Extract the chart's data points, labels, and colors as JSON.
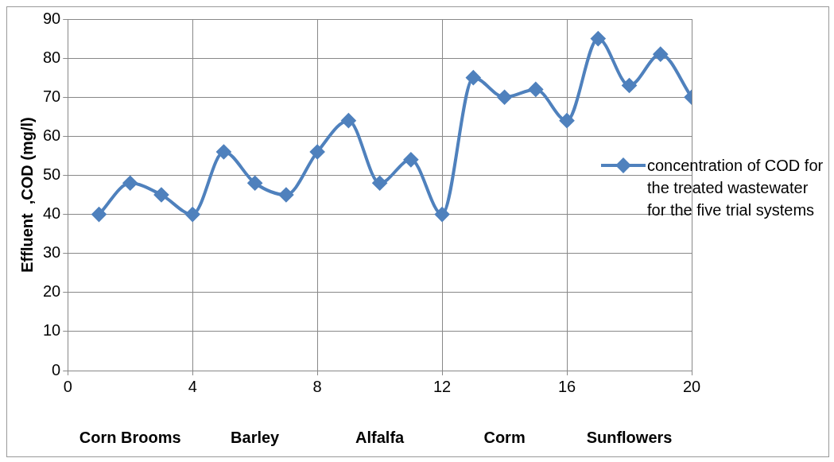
{
  "chart_data": {
    "type": "line",
    "ylabel": "Effluent  ,COD (mg/l)",
    "x": [
      1,
      2,
      3,
      4,
      5,
      6,
      7,
      8,
      9,
      10,
      11,
      12,
      13,
      14,
      15,
      16,
      17,
      18,
      19,
      20
    ],
    "series": [
      {
        "name": "concentration of COD for the treated wastewater for the five trial systems",
        "color": "#4f81bd",
        "values": [
          40,
          48,
          45,
          40,
          56,
          48,
          45,
          56,
          64,
          48,
          54,
          40,
          75,
          70,
          72,
          64,
          85,
          73,
          81,
          70
        ]
      }
    ],
    "xlim": [
      0,
      20
    ],
    "xticks": [
      0,
      4,
      8,
      12,
      16,
      20
    ],
    "ylim": [
      0,
      90
    ],
    "yticks": [
      0,
      10,
      20,
      30,
      40,
      50,
      60,
      70,
      80,
      90
    ],
    "annotations": [
      "Corn Brooms",
      "Barley",
      "Alfalfa",
      "Corm",
      "Sunflowers"
    ],
    "grid": true,
    "legend": "right",
    "marker": "diamond",
    "line_style": "solid"
  }
}
